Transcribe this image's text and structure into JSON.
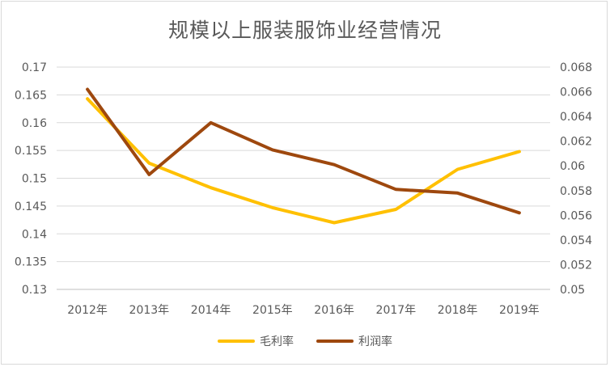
{
  "chart_data": {
    "type": "line",
    "title": "规模以上服装服饰业经营情况",
    "categories": [
      "2012年",
      "2013年",
      "2014年",
      "2015年",
      "2016年",
      "2017年",
      "2018年",
      "2019年"
    ],
    "series": [
      {
        "name": "毛利率",
        "axis": "left",
        "color": "#ffc000",
        "values": [
          0.1643,
          0.1527,
          0.1483,
          0.1447,
          0.142,
          0.1444,
          0.1516,
          0.1548
        ]
      },
      {
        "name": "利润率",
        "axis": "right",
        "color": "#9e480e",
        "values": [
          0.0662,
          0.0593,
          0.0635,
          0.0613,
          0.0601,
          0.0581,
          0.0578,
          0.0562
        ]
      }
    ],
    "y_left": {
      "min": 0.13,
      "max": 0.17,
      "ticks": [
        "0.13",
        "0.135",
        "0.14",
        "0.145",
        "0.15",
        "0.155",
        "0.16",
        "0.165",
        "0.17"
      ]
    },
    "y_right": {
      "min": 0.05,
      "max": 0.068,
      "ticks": [
        "0.05",
        "0.052",
        "0.054",
        "0.056",
        "0.058",
        "0.06",
        "0.062",
        "0.064",
        "0.066",
        "0.068"
      ]
    },
    "grid": "horizontal",
    "legend_position": "bottom"
  }
}
